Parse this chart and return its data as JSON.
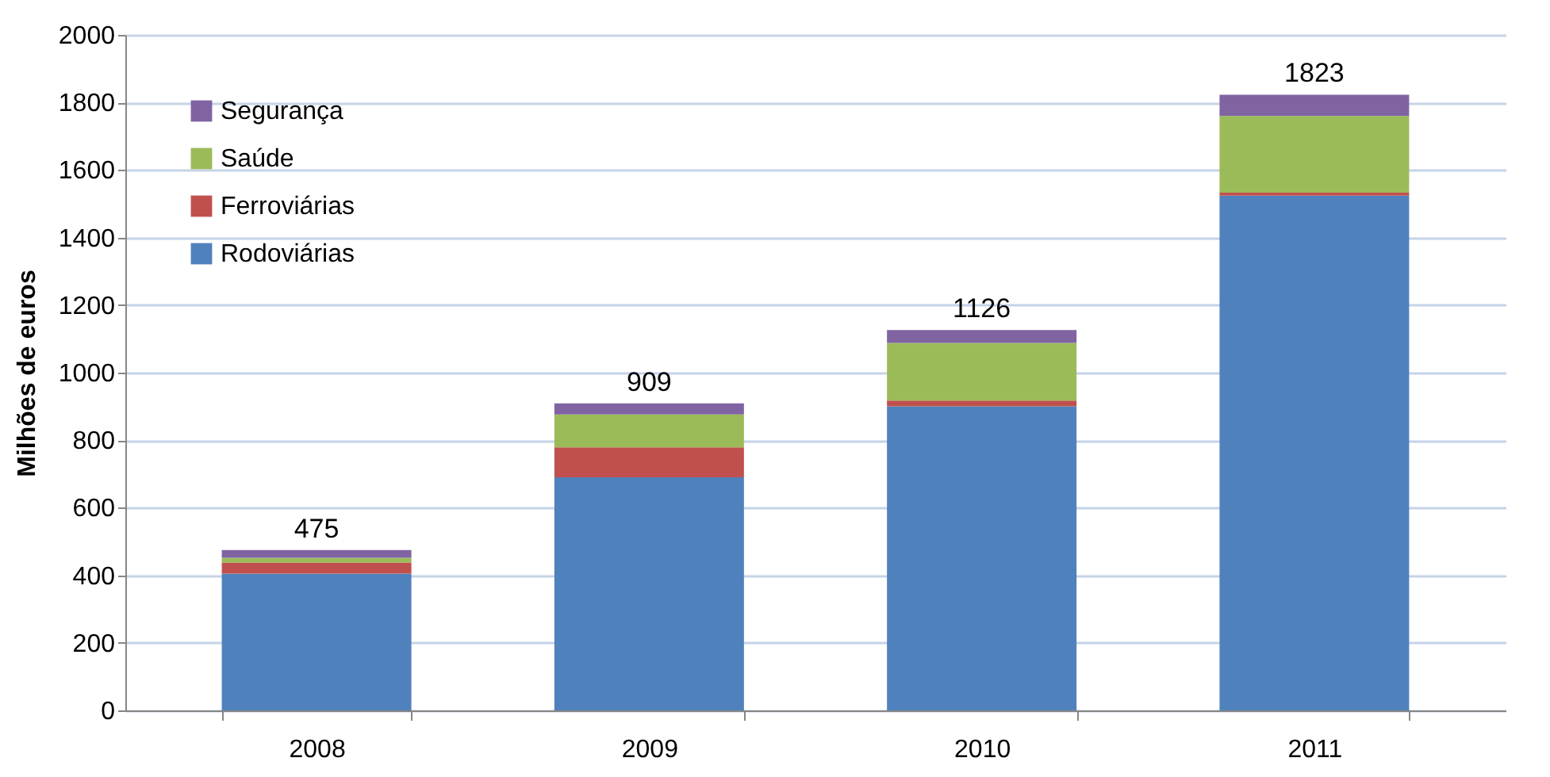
{
  "chart_data": {
    "type": "bar",
    "stacked": true,
    "ylabel": "Milhões de euros",
    "categories": [
      "2008",
      "2009",
      "2010",
      "2011"
    ],
    "series": [
      {
        "name": "Rodoviárias",
        "color": "#4f81bd",
        "values": [
          405,
          690,
          900,
          1524
        ]
      },
      {
        "name": "Ferroviárias",
        "color": "#c0504d",
        "values": [
          33,
          89,
          17,
          9
        ]
      },
      {
        "name": "Saúde",
        "color": "#9bbb59",
        "values": [
          14,
          97,
          171,
          227
        ]
      },
      {
        "name": "Segurança",
        "color": "#8064a2",
        "values": [
          23,
          33,
          38,
          63
        ]
      }
    ],
    "totals": [
      "475",
      "909",
      "1126",
      "1823"
    ],
    "ylim": [
      0,
      2000
    ],
    "yticks": [
      0,
      200,
      400,
      600,
      800,
      1000,
      1200,
      1400,
      1600,
      1800,
      2000
    ],
    "grid": "y",
    "legend": "top left"
  }
}
